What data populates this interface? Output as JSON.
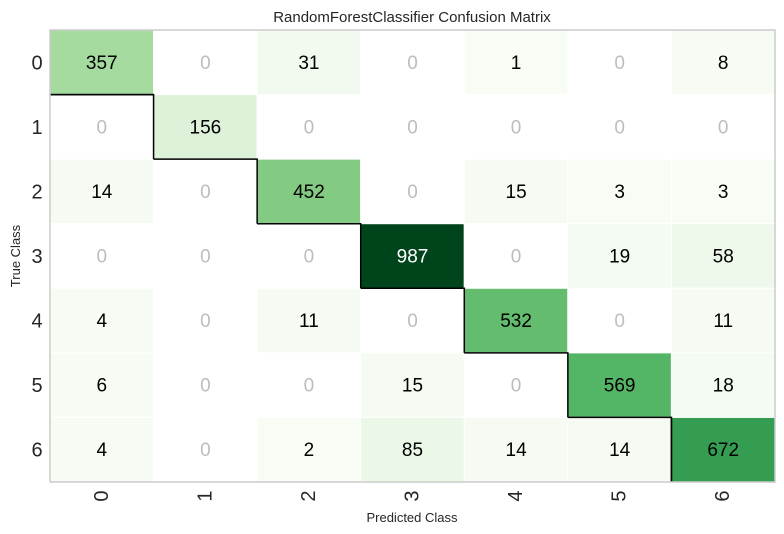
{
  "chart_data": {
    "type": "heatmap",
    "title": "RandomForestClassifier Confusion Matrix",
    "xlabel": "Predicted Class",
    "ylabel": "True Class",
    "x_tick_labels": [
      "0",
      "1",
      "2",
      "3",
      "4",
      "5",
      "6"
    ],
    "y_tick_labels": [
      "0",
      "1",
      "2",
      "3",
      "4",
      "5",
      "6"
    ],
    "matrix": [
      [
        357,
        0,
        31,
        0,
        1,
        0,
        8
      ],
      [
        0,
        156,
        0,
        0,
        0,
        0,
        0
      ],
      [
        14,
        0,
        452,
        0,
        15,
        3,
        3
      ],
      [
        0,
        0,
        0,
        987,
        0,
        19,
        58
      ],
      [
        4,
        0,
        11,
        0,
        532,
        0,
        11
      ],
      [
        6,
        0,
        0,
        15,
        0,
        569,
        18
      ],
      [
        4,
        0,
        2,
        85,
        14,
        14,
        672
      ]
    ],
    "colormap": "Greens",
    "zero_text_color": "#bdbdbd",
    "dark_text_color": "#000000",
    "light_text_color": "#ffffff",
    "diagonal_outline_color": "#000000"
  }
}
